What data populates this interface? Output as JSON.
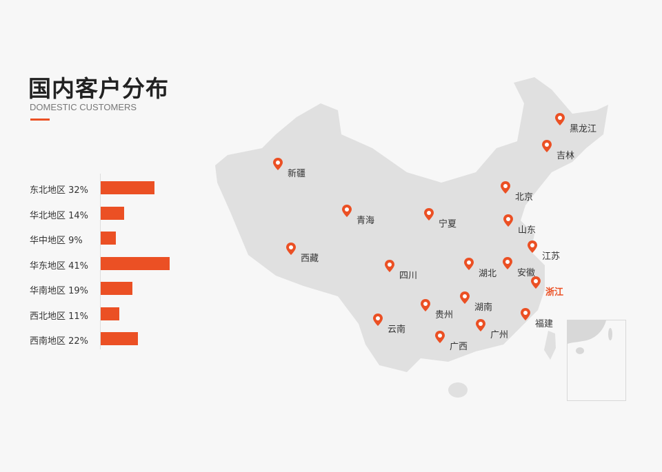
{
  "header": {
    "title": "国内客户分布",
    "subtitle": "DOMESTIC CUSTOMERS"
  },
  "colors": {
    "accent": "#eb5024",
    "map_fill": "#e0e0e0",
    "background": "#f7f7f7"
  },
  "chart_data": {
    "type": "bar",
    "orientation": "horizontal",
    "categories": [
      "东北地区",
      "华北地区",
      "华中地区",
      "华东地区",
      "华南地区",
      "西北地区",
      "西南地区"
    ],
    "values": [
      32,
      14,
      9,
      41,
      19,
      11,
      22
    ],
    "labels": [
      "东北地区 32%",
      "华北地区 14%",
      "华中地区 9%",
      "华东地区 41%",
      "华南地区 19%",
      "西北地区 11%",
      "西南地区 22%"
    ],
    "unit": "%"
  },
  "map": {
    "icon": "map-pin-icon",
    "highlighted": "浙江",
    "locations": [
      "黑龙江",
      "吉林",
      "新疆",
      "北京",
      "青海",
      "宁夏",
      "山东",
      "江苏",
      "西藏",
      "四川",
      "湖北",
      "安徽",
      "浙江",
      "湖南",
      "贵州",
      "福建",
      "云南",
      "广州",
      "广西"
    ]
  }
}
